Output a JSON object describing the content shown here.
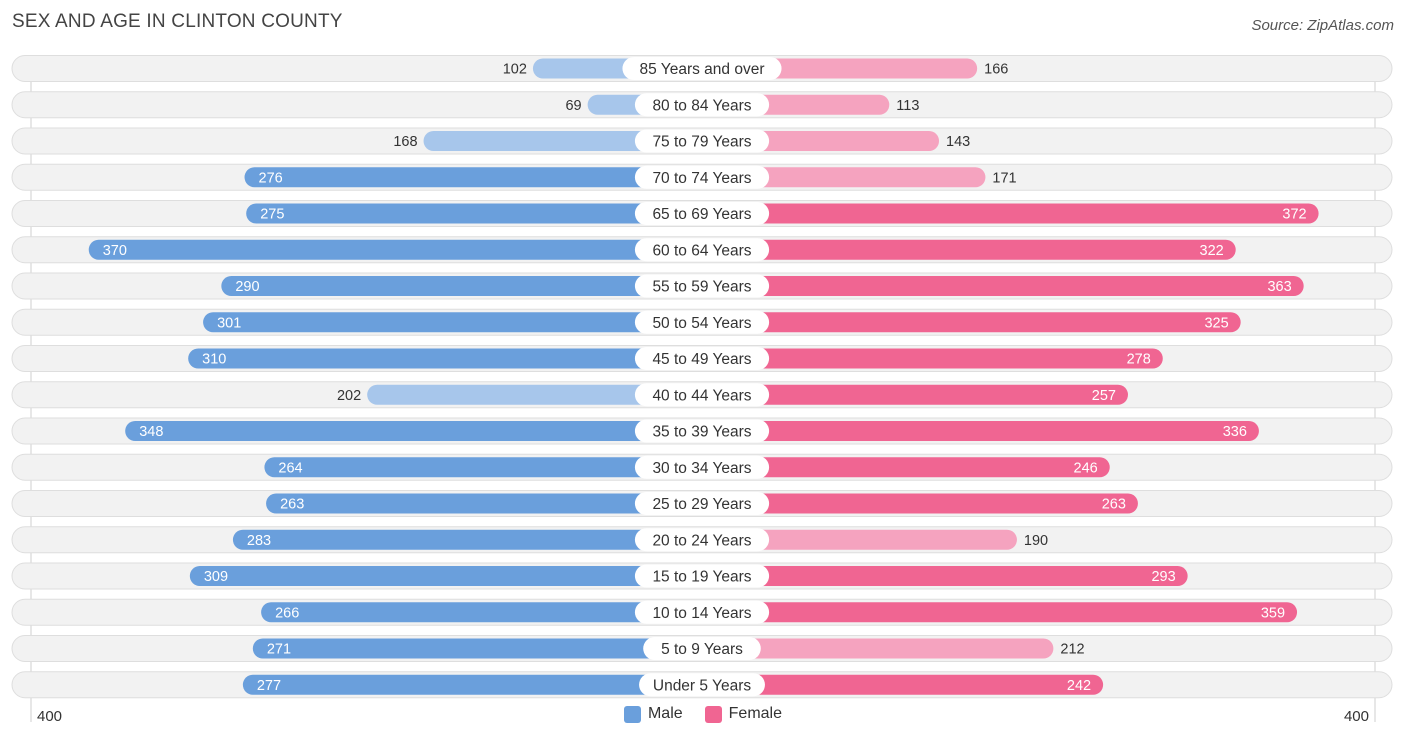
{
  "title": "SEX AND AGE IN CLINTON COUNTY",
  "source": "Source: ZipAtlas.com",
  "legend": {
    "male": "Male",
    "female": "Female"
  },
  "axis": {
    "left": "400",
    "right": "400"
  },
  "colors": {
    "male_dark": "#6a9fdc",
    "male_light": "#a7c6eb",
    "female_dark": "#f06592",
    "female_light": "#f5a3bf",
    "row_bg": "#f0f0f0",
    "row_border": "#dedede"
  },
  "chart_data": {
    "type": "bar",
    "orientation": "horizontal-diverging",
    "title": "SEX AND AGE IN CLINTON COUNTY",
    "xlim": [
      -400,
      400
    ],
    "categories": [
      "85 Years and over",
      "80 to 84 Years",
      "75 to 79 Years",
      "70 to 74 Years",
      "65 to 69 Years",
      "60 to 64 Years",
      "55 to 59 Years",
      "50 to 54 Years",
      "45 to 49 Years",
      "40 to 44 Years",
      "35 to 39 Years",
      "30 to 34 Years",
      "25 to 29 Years",
      "20 to 24 Years",
      "15 to 19 Years",
      "10 to 14 Years",
      "5 to 9 Years",
      "Under 5 Years"
    ],
    "series": [
      {
        "name": "Male",
        "values": [
          102,
          69,
          168,
          276,
          275,
          370,
          290,
          301,
          310,
          202,
          348,
          264,
          263,
          283,
          309,
          266,
          271,
          277
        ]
      },
      {
        "name": "Female",
        "values": [
          166,
          113,
          143,
          171,
          372,
          322,
          363,
          325,
          278,
          257,
          336,
          246,
          263,
          190,
          293,
          359,
          212,
          242
        ]
      }
    ],
    "legend_position": "bottom-center"
  }
}
